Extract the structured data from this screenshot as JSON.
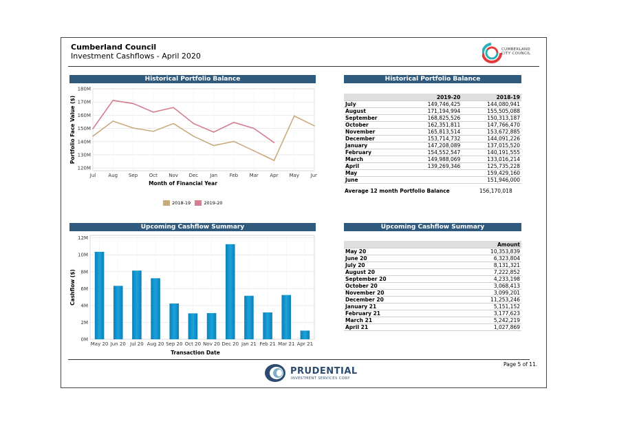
{
  "header": {
    "title": "Cumberland Council",
    "subtitle": "Investment Cashflows - April 2020",
    "logo_text_1": "CUMBERLAND",
    "logo_text_2": "CITY COUNCIL"
  },
  "sections": {
    "hist_chart_title": "Historical Portfolio Balance",
    "hist_table_title": "Historical Portfolio Balance",
    "cash_chart_title": "Upcoming Cashflow Summary",
    "cash_table_title": "Upcoming Cashflow Summary"
  },
  "hist_table": {
    "col1": "2019-20",
    "col2": "2018-19",
    "rows": [
      {
        "month": "July",
        "y1": "149,746,425",
        "y2": "144,080,941"
      },
      {
        "month": "August",
        "y1": "171,194,994",
        "y2": "155,505,088"
      },
      {
        "month": "September",
        "y1": "168,825,526",
        "y2": "150,313,187"
      },
      {
        "month": "October",
        "y1": "162,351,811",
        "y2": "147,766,470"
      },
      {
        "month": "November",
        "y1": "165,813,514",
        "y2": "153,672,885"
      },
      {
        "month": "December",
        "y1": "153,714,732",
        "y2": "144,091,226"
      },
      {
        "month": "January",
        "y1": "147,208,089",
        "y2": "137,015,520"
      },
      {
        "month": "February",
        "y1": "154,552,547",
        "y2": "140,191,555"
      },
      {
        "month": "March",
        "y1": "149,988,069",
        "y2": "133,016,214"
      },
      {
        "month": "April",
        "y1": "139,269,346",
        "y2": "125,735,228"
      },
      {
        "month": "May",
        "y1": "",
        "y2": "159,429,160"
      },
      {
        "month": "June",
        "y1": "",
        "y2": "151,946,000"
      }
    ],
    "avg_label": "Average 12 month Portfolio Balance",
    "avg_value": "156,170,018"
  },
  "cash_table": {
    "col": "Amount",
    "rows": [
      {
        "month": "May 20",
        "amount": "10,353,839"
      },
      {
        "month": "June 20",
        "amount": "6,323,804"
      },
      {
        "month": "July 20",
        "amount": "8,131,321"
      },
      {
        "month": "August 20",
        "amount": "7,222,852"
      },
      {
        "month": "September 20",
        "amount": "4,233,198"
      },
      {
        "month": "October 20",
        "amount": "3,068,413"
      },
      {
        "month": "November 20",
        "amount": "3,099,201"
      },
      {
        "month": "December 20",
        "amount": "11,253,246"
      },
      {
        "month": "January 21",
        "amount": "5,151,152"
      },
      {
        "month": "February 21",
        "amount": "3,177,623"
      },
      {
        "month": "March 21",
        "amount": "5,242,219"
      },
      {
        "month": "April 21",
        "amount": "1,027,869"
      }
    ]
  },
  "footer": {
    "page": "Page 5 of 11.",
    "brand": "PRUDENTIAL",
    "brand_sub": "INVESTMENT SERVICES CORP"
  },
  "chart_data": [
    {
      "type": "line",
      "title": "Historical Portfolio Balance",
      "xlabel": "Month of Financial Year",
      "ylabel": "Portfolio Face Value ($)",
      "categories": [
        "Jul",
        "Aug",
        "Sep",
        "Oct",
        "Nov",
        "Dec",
        "Jan",
        "Feb",
        "Mar",
        "Apr",
        "May",
        "Jun"
      ],
      "ylim": [
        118,
        180
      ],
      "yticks": [
        "120M",
        "130M",
        "140M",
        "150M",
        "160M",
        "170M",
        "180M"
      ],
      "ytick_values": [
        120,
        130,
        140,
        150,
        160,
        170,
        180
      ],
      "series": [
        {
          "name": "2018-19",
          "color": "#c8ab7b",
          "values": [
            144.08,
            155.51,
            150.31,
            147.77,
            153.67,
            144.09,
            137.02,
            140.19,
            133.02,
            125.74,
            159.43,
            151.95
          ]
        },
        {
          "name": "2019-20",
          "color": "#d47d8e",
          "values": [
            149.75,
            171.19,
            168.83,
            162.35,
            165.81,
            153.71,
            147.21,
            154.55,
            149.99,
            139.27,
            null,
            null
          ]
        }
      ],
      "legend": "bottom",
      "grid": true
    },
    {
      "type": "bar",
      "title": "Upcoming Cashflow Summary",
      "xlabel": "Transaction Date",
      "ylabel": "Cashflow ($)",
      "categories": [
        "May 20",
        "Jun 20",
        "Jul 20",
        "Aug 20",
        "Sep 20",
        "Oct 20",
        "Nov 20",
        "Dec 20",
        "Jan 21",
        "Feb 21",
        "Mar 21",
        "Apr 21"
      ],
      "values": [
        10.354,
        6.324,
        8.131,
        7.223,
        4.233,
        3.068,
        3.099,
        11.253,
        5.151,
        3.178,
        5.242,
        1.028
      ],
      "ylim": [
        0,
        12.3
      ],
      "yticks": [
        "0M",
        "2M",
        "4M",
        "6M",
        "8M",
        "10M",
        "12M"
      ],
      "ytick_values": [
        0,
        2,
        4,
        6,
        8,
        10,
        12
      ],
      "color": "#1aa3dc",
      "grid": true
    }
  ]
}
